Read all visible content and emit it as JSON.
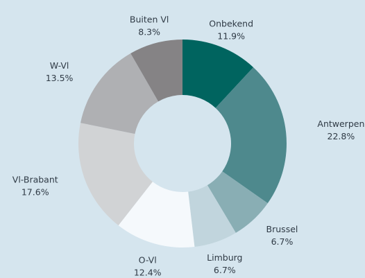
{
  "chart_data": {
    "type": "donut",
    "categories": [
      "Onbekend",
      "Antwerpen",
      "Brussel",
      "Limburg",
      "O-Vl",
      "Vl-Brabant",
      "W-Vl",
      "Buiten Vl"
    ],
    "values": [
      11.9,
      22.8,
      6.7,
      6.7,
      12.4,
      17.6,
      13.5,
      8.3
    ],
    "value_labels": [
      "11.9%",
      "22.8%",
      "6.7%",
      "6.7%",
      "12.4%",
      "17.6%",
      "13.5%",
      "8.3%"
    ],
    "colors": [
      "#00645f",
      "#4e898d",
      "#89aeb4",
      "#c1d5dd",
      "#f5f9fc",
      "#d1d3d5",
      "#afb0b3",
      "#858385"
    ]
  }
}
